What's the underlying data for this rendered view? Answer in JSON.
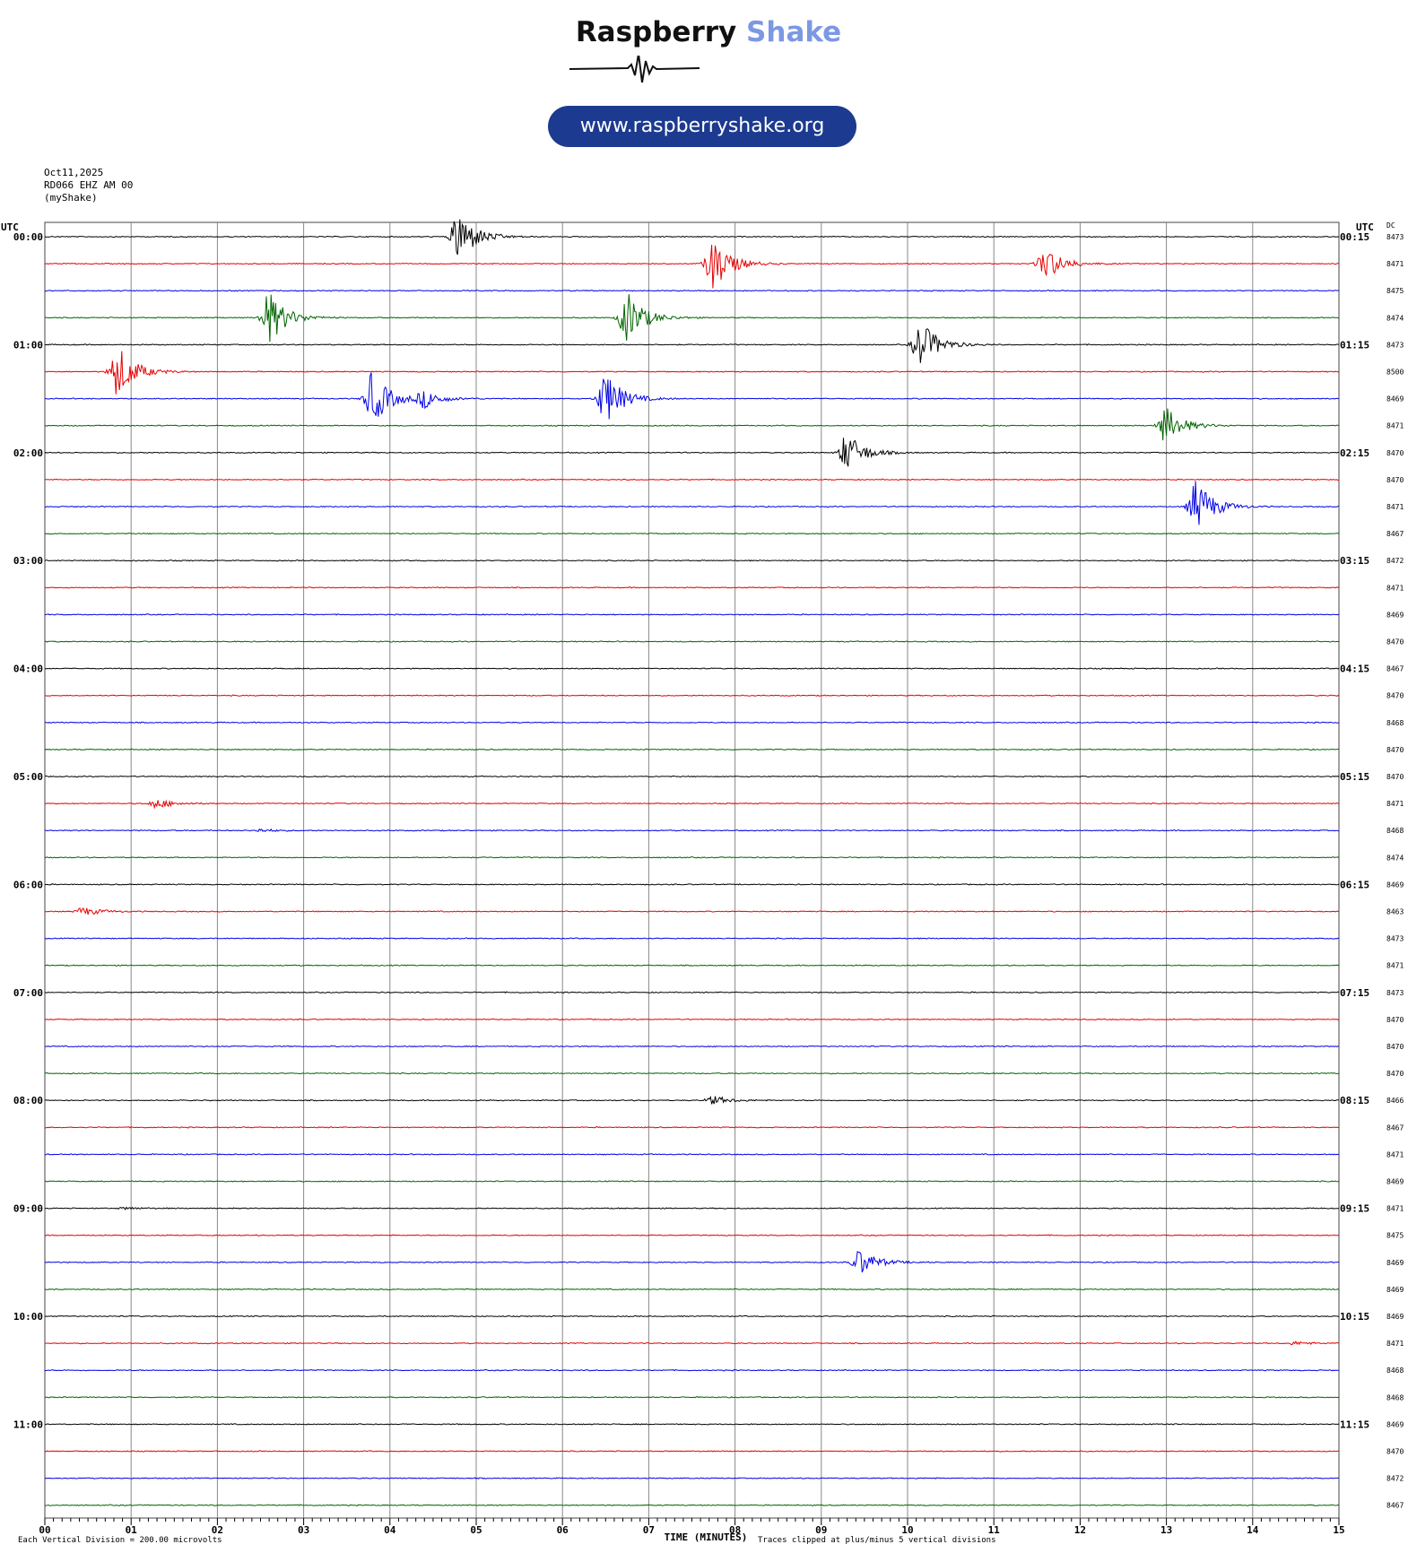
{
  "logo": {
    "brand_part1": "Raspberry",
    "brand_part2": "Shake",
    "website": "www.raspberryshake.org"
  },
  "header": {
    "date": "Oct11,2025",
    "station": "RD066 EHZ AM 00",
    "network": "(myShake)"
  },
  "colors": {
    "trace_cycle": [
      "#000000",
      "#e60000",
      "#0000e6",
      "#006400"
    ],
    "grid": "#888888",
    "brand_blue": "#1c3a8f"
  },
  "chart_data": {
    "type": "line",
    "title": "",
    "xlabel": "TIME (MINUTES)",
    "left_axis_label": "UTC",
    "right_axis_label": "UTC",
    "dc_label": "DC",
    "xlim": [
      0,
      15
    ],
    "x_ticks": [
      "00",
      "01",
      "02",
      "03",
      "04",
      "05",
      "06",
      "07",
      "08",
      "09",
      "10",
      "11",
      "12",
      "13",
      "14",
      "15"
    ],
    "left_time_labels": [
      "00:00",
      "01:00",
      "02:00",
      "03:00",
      "04:00",
      "05:00",
      "06:00",
      "07:00",
      "08:00",
      "09:00",
      "10:00",
      "11:00"
    ],
    "right_time_labels": [
      "00:15",
      "01:15",
      "02:15",
      "03:15",
      "04:15",
      "05:15",
      "06:15",
      "07:15",
      "08:15",
      "09:15",
      "10:15",
      "11:15"
    ],
    "dc_offsets": [
      8473,
      8471,
      8475,
      8474,
      8473,
      8500,
      8469,
      8471,
      8470,
      8470,
      8471,
      8467,
      8472,
      8471,
      8469,
      8470,
      8467,
      8470,
      8468,
      8470,
      8470,
      8471,
      8468,
      8474,
      8469,
      8463,
      8473,
      8471,
      8473,
      8470,
      8470,
      8470,
      8466,
      8467,
      8471,
      8469,
      8471,
      8475,
      8469,
      8469,
      8469,
      8471,
      8468,
      8468,
      8469,
      8470,
      8472,
      8467
    ],
    "events": [
      {
        "line": 0,
        "minute": 4.8,
        "amplitude": 5
      },
      {
        "line": 1,
        "minute": 7.75,
        "amplitude": 5
      },
      {
        "line": 1,
        "minute": 11.6,
        "amplitude": 3.2
      },
      {
        "line": 3,
        "minute": 2.6,
        "amplitude": 5
      },
      {
        "line": 3,
        "minute": 6.75,
        "amplitude": 5
      },
      {
        "line": 4,
        "minute": 10.15,
        "amplitude": 4.5
      },
      {
        "line": 5,
        "minute": 0.85,
        "amplitude": 5
      },
      {
        "line": 6,
        "minute": 3.8,
        "amplitude": 5
      },
      {
        "line": 6,
        "minute": 4.4,
        "amplitude": 1.6
      },
      {
        "line": 6,
        "minute": 6.5,
        "amplitude": 5
      },
      {
        "line": 7,
        "minute": 13.0,
        "amplitude": 3.5
      },
      {
        "line": 8,
        "minute": 9.3,
        "amplitude": 3.7
      },
      {
        "line": 10,
        "minute": 13.35,
        "amplitude": 5
      },
      {
        "line": 21,
        "minute": 1.3,
        "amplitude": 0.9
      },
      {
        "line": 22,
        "minute": 2.5,
        "amplitude": 0.3
      },
      {
        "line": 25,
        "minute": 0.45,
        "amplitude": 0.8
      },
      {
        "line": 32,
        "minute": 7.75,
        "amplitude": 0.8
      },
      {
        "line": 36,
        "minute": 0.95,
        "amplitude": 0.2
      },
      {
        "line": 38,
        "minute": 9.45,
        "amplitude": 2.5
      },
      {
        "line": 41,
        "minute": 14.5,
        "amplitude": 0.3
      }
    ],
    "noise_amplitude": 0.08,
    "grid": true,
    "clip_divisions": 5
  },
  "footer": {
    "scale_note": "Each Vertical Division =  200.00 microvolts",
    "clip_note": "Traces clipped at plus/minus 5 vertical divisions"
  }
}
